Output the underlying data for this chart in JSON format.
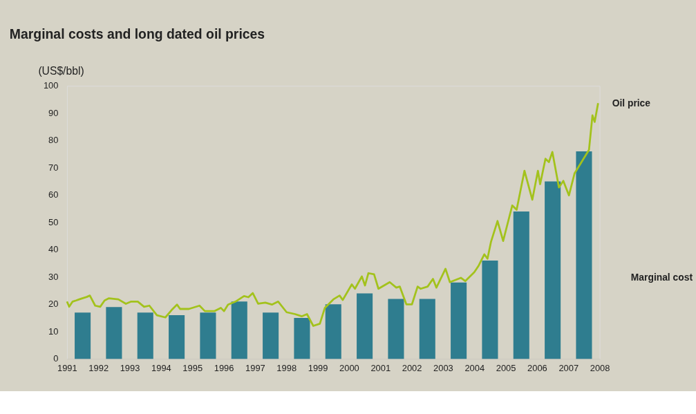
{
  "chart_data": {
    "type": "bar",
    "title": "Marginal costs and long dated oil prices",
    "ylabel": "(US$/bbl)",
    "xlim": [
      1991,
      2008
    ],
    "xticks": [
      1991,
      1992,
      1993,
      1994,
      1995,
      1996,
      1997,
      1998,
      1999,
      2000,
      2001,
      2002,
      2003,
      2004,
      2005,
      2006,
      2007,
      2008
    ],
    "ylim": [
      0,
      100
    ],
    "yticks": [
      0,
      10,
      20,
      30,
      40,
      50,
      60,
      70,
      80,
      90,
      100
    ],
    "grid": false,
    "marker": "none",
    "line_style": "solid",
    "series": [
      {
        "name": "Marginal cost",
        "color": "#2f7d8f",
        "x": [
          1991.5,
          1992.5,
          1993.5,
          1994.5,
          1995.5,
          1996.5,
          1997.5,
          1998.5,
          1999.5,
          2000.5,
          2001.5,
          2002.5,
          2003.5,
          2004.5,
          2005.5,
          2006.5,
          2007.5
        ],
        "values": [
          17,
          19,
          17,
          16,
          17,
          21,
          17,
          15,
          20,
          24,
          22,
          22,
          28,
          36,
          54,
          65,
          76
        ]
      },
      {
        "name": "Oil price",
        "type": "line",
        "color": "#a3c21c",
        "x": [
          1991.0,
          1991.07,
          1991.18,
          1991.29,
          1991.39,
          1991.49,
          1991.63,
          1991.73,
          1991.9,
          1992.06,
          1992.2,
          1992.34,
          1992.64,
          1992.88,
          1993.05,
          1993.26,
          1993.46,
          1993.63,
          1993.87,
          1994.14,
          1994.34,
          1994.51,
          1994.61,
          1994.89,
          1995.23,
          1995.4,
          1995.7,
          1995.91,
          1996.01,
          1996.14,
          1996.38,
          1996.65,
          1996.79,
          1996.93,
          1997.1,
          1997.33,
          1997.54,
          1997.74,
          1998.01,
          1998.28,
          1998.49,
          1998.66,
          1998.86,
          1999.07,
          1999.23,
          1999.5,
          1999.7,
          1999.8,
          2000.09,
          2000.19,
          2000.41,
          2000.51,
          2000.62,
          2000.8,
          2000.94,
          2001.12,
          2001.3,
          2001.51,
          2001.62,
          2001.83,
          2002.01,
          2002.19,
          2002.29,
          2002.51,
          2002.68,
          2002.79,
          2003.08,
          2003.22,
          2003.57,
          2003.71,
          2004.0,
          2004.14,
          2004.32,
          2004.42,
          2004.53,
          2004.74,
          2004.92,
          2005.21,
          2005.35,
          2005.6,
          2005.85,
          2006.03,
          2006.1,
          2006.27,
          2006.38,
          2006.49,
          2006.7,
          2006.84,
          2007.02,
          2007.2,
          2007.66,
          2007.77,
          2007.84,
          2007.95
        ],
        "values": [
          21,
          19.1,
          21,
          21.4,
          21.8,
          22.2,
          22.7,
          23.2,
          19.5,
          19.1,
          21.4,
          22.2,
          21.8,
          20.2,
          21,
          21,
          19.1,
          19.5,
          16,
          15.2,
          17.9,
          19.9,
          18.3,
          18.3,
          19.5,
          17.5,
          17.5,
          18.7,
          17.5,
          19.9,
          21,
          23,
          22.6,
          24.1,
          20.2,
          20.6,
          19.9,
          21,
          17.1,
          16.4,
          15.6,
          16.4,
          12.1,
          12.9,
          18.7,
          21.8,
          23.2,
          21.6,
          27.3,
          25.7,
          30.2,
          26.9,
          31.4,
          31,
          25.7,
          26.9,
          28.1,
          26.1,
          26.5,
          20,
          20,
          26.5,
          25.7,
          26.5,
          29.3,
          26.1,
          33,
          28.1,
          29.7,
          28.5,
          31.8,
          34.2,
          38.3,
          36.7,
          42.8,
          50.5,
          43.2,
          56.2,
          54.6,
          68.9,
          58.3,
          68.9,
          64,
          73.3,
          72.1,
          75.8,
          62.8,
          65.2,
          59.9,
          68,
          76.6,
          89.2,
          86.8,
          93.7
        ]
      }
    ]
  }
}
